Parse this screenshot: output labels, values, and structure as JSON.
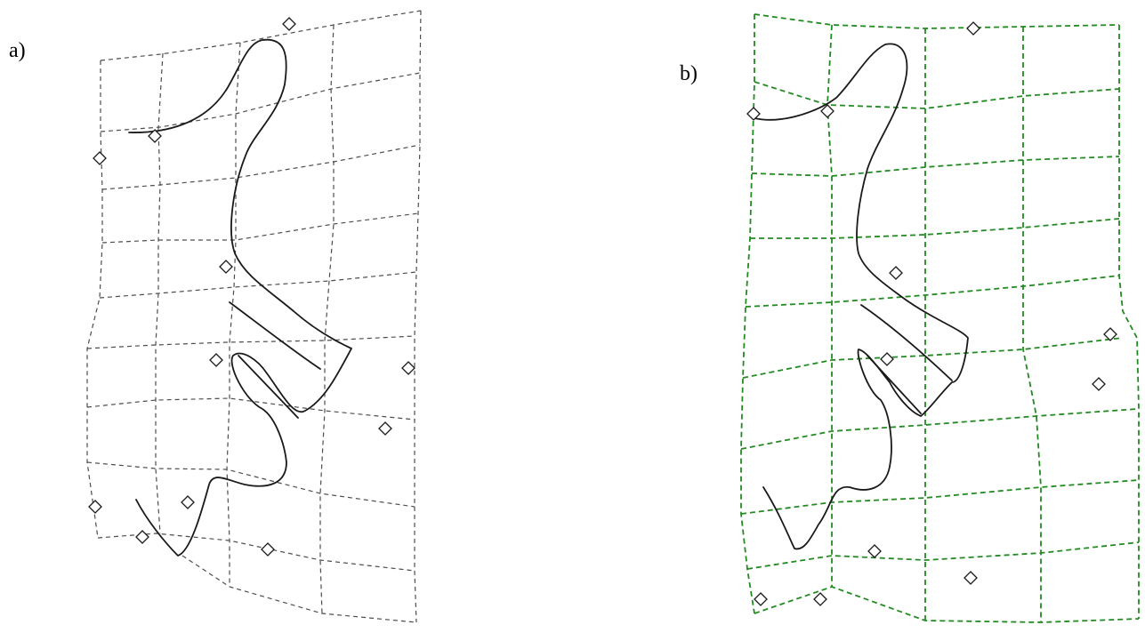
{
  "panels": [
    {
      "id": "a",
      "label": "a)",
      "grid_color": "#4d4d4d",
      "grid_style": "dashed",
      "curve_color": "#1a1a1a",
      "marker_shape": "diamond"
    },
    {
      "id": "b",
      "label": "b)",
      "grid_color": "#228b22",
      "grid_style": "dashed",
      "curve_color": "#1a1a1a",
      "marker_shape": "diamond"
    }
  ]
}
